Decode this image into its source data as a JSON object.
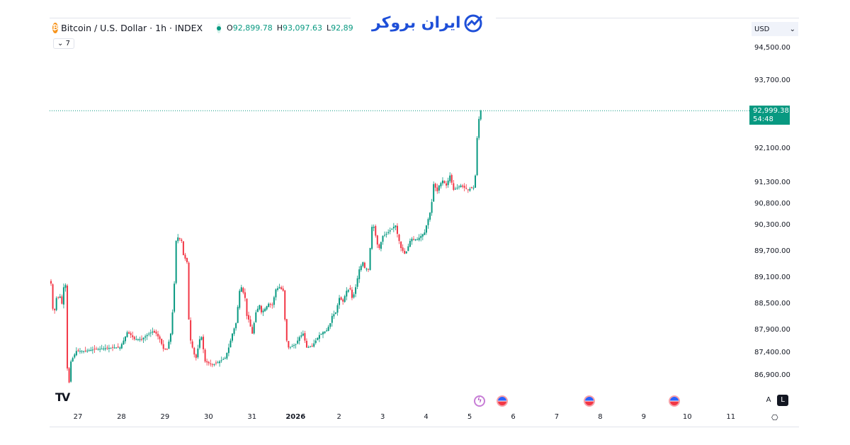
{
  "legend": {
    "symbol_icon": "bitcoin-icon",
    "title": "Bitcoin / U.S. Dollar · 1h · INDEX",
    "o_label": "O",
    "o_value": "92,899.78",
    "h_label": "H",
    "h_value": "93,097.63",
    "l_label": "L",
    "l_value": "92,89",
    "indicators_toggle": "7"
  },
  "logo_text": "ایران بروکر",
  "currency": "USD",
  "price_axis": [
    "94,500.00",
    "93,700.00",
    "92,100.00",
    "91,300.00",
    "90,800.00",
    "90,300.00",
    "89,700.00",
    "89,100.00",
    "88,500.00",
    "87,900.00",
    "87,400.00",
    "86,900.00"
  ],
  "last_price": {
    "value": "92,999.38",
    "countdown": "54:48"
  },
  "time_axis": [
    "27",
    "28",
    "29",
    "30",
    "31",
    "2026",
    "2",
    "3",
    "4",
    "5",
    "6",
    "7",
    "8",
    "9",
    "10",
    "11"
  ],
  "scale_buttons": {
    "auto": "A",
    "log": "L"
  },
  "colors": {
    "up": "#089981",
    "down": "#f23645",
    "brand": "#1e4fd8"
  },
  "chart_data": {
    "type": "candlestick",
    "interval": "1h",
    "y_scale": "log",
    "ylim": [
      86900,
      94500
    ],
    "grid": false,
    "close_anchors": [
      [
        "2025-12-26 09:00",
        88970
      ],
      [
        "2025-12-26 10:00",
        88399
      ],
      [
        "2025-12-26 11:00",
        88366
      ],
      [
        "2025-12-26 12:00",
        88644
      ],
      [
        "2025-12-26 14:00",
        88676
      ],
      [
        "2025-12-26 15:00",
        88513
      ],
      [
        "2025-12-26 16:00",
        88888
      ],
      [
        "2025-12-26 17:00",
        88937
      ],
      [
        "2025-12-26 18:00",
        87058
      ],
      [
        "2025-12-26 19:00",
        86746
      ],
      [
        "2025-12-26 20:00",
        87214
      ],
      [
        "2025-12-26 21:00",
        87292
      ],
      [
        "2025-12-26 23:00",
        87448
      ],
      [
        "2025-12-27 04:00",
        87448
      ],
      [
        "2025-12-27 08:00",
        87479
      ],
      [
        "2025-12-27 12:00",
        87495
      ],
      [
        "2025-12-27 19:00",
        87526
      ],
      [
        "2025-12-27 23:00",
        87526
      ],
      [
        "2025-12-28 01:00",
        87682
      ],
      [
        "2025-12-28 03:00",
        87869
      ],
      [
        "2025-12-28 05:00",
        87806
      ],
      [
        "2025-12-28 07:00",
        87713
      ],
      [
        "2025-12-28 11:00",
        87713
      ],
      [
        "2025-12-28 15:00",
        87838
      ],
      [
        "2025-12-28 17:00",
        87884
      ],
      [
        "2025-12-28 19:00",
        87838
      ],
      [
        "2025-12-28 21:00",
        87713
      ],
      [
        "2025-12-28 23:00",
        87495
      ],
      [
        "2025-12-29 01:00",
        87479
      ],
      [
        "2025-12-29 03:00",
        87838
      ],
      [
        "2025-12-29 04:00",
        88318
      ],
      [
        "2025-12-29 05:00",
        88970
      ],
      [
        "2025-12-29 06:00",
        89948
      ],
      [
        "2025-12-29 07:00",
        90029
      ],
      [
        "2025-12-29 09:00",
        89948
      ],
      [
        "2025-12-29 10:00",
        89622
      ],
      [
        "2025-12-29 12:00",
        89459
      ],
      [
        "2025-12-29 13:00",
        88155
      ],
      [
        "2025-12-29 14:00",
        87682
      ],
      [
        "2025-12-29 16:00",
        87370
      ],
      [
        "2025-12-29 17:00",
        87292
      ],
      [
        "2025-12-29 19:00",
        87713
      ],
      [
        "2025-12-29 20:00",
        87760
      ],
      [
        "2025-12-29 22:00",
        87214
      ],
      [
        "2025-12-30 02:00",
        87136
      ],
      [
        "2025-12-30 06:00",
        87214
      ],
      [
        "2025-12-30 09:00",
        87292
      ],
      [
        "2025-12-30 11:00",
        87526
      ],
      [
        "2025-12-30 13:00",
        87838
      ],
      [
        "2025-12-30 15:00",
        88073
      ],
      [
        "2025-12-30 17:00",
        88807
      ],
      [
        "2025-12-30 18:00",
        88888
      ],
      [
        "2025-12-30 20:00",
        88644
      ],
      [
        "2025-12-30 21:00",
        88236
      ],
      [
        "2025-12-30 22:00",
        88155
      ],
      [
        "2025-12-31 00:00",
        87838
      ],
      [
        "2025-12-31 02:00",
        88318
      ],
      [
        "2025-12-31 04:00",
        88481
      ],
      [
        "2025-12-31 05:00",
        88318
      ],
      [
        "2025-12-31 07:00",
        88399
      ],
      [
        "2025-12-31 09:00",
        88513
      ],
      [
        "2025-12-31 11:00",
        88481
      ],
      [
        "2025-12-31 13:00",
        88839
      ],
      [
        "2025-12-31 15:00",
        88888
      ],
      [
        "2025-12-31 17:00",
        88807
      ],
      [
        "2025-12-31 18:00",
        88155
      ],
      [
        "2025-12-31 19:00",
        87682
      ],
      [
        "2025-12-31 20:00",
        87526
      ],
      [
        "2025-12-31 22:00",
        87557
      ],
      [
        "2026-01-01 00:00",
        87604
      ],
      [
        "2026-01-01 02:00",
        87760
      ],
      [
        "2026-01-01 04:00",
        87838
      ],
      [
        "2026-01-01 06:00",
        87526
      ],
      [
        "2026-01-01 09:00",
        87557
      ],
      [
        "2026-01-01 11:00",
        87682
      ],
      [
        "2026-01-01 13:00",
        87806
      ],
      [
        "2026-01-01 15:00",
        87869
      ],
      [
        "2026-01-01 17:00",
        87910
      ],
      [
        "2026-01-01 19:00",
        88073
      ],
      [
        "2026-01-01 20:00",
        88236
      ],
      [
        "2026-01-01 22:00",
        88318
      ],
      [
        "2026-01-02 00:00",
        88644
      ],
      [
        "2026-01-02 02:00",
        88562
      ],
      [
        "2026-01-02 04:00",
        88807
      ],
      [
        "2026-01-02 06:00",
        88839
      ],
      [
        "2026-01-02 07:00",
        88644
      ],
      [
        "2026-01-02 08:00",
        88725
      ],
      [
        "2026-01-02 09:00",
        88888
      ],
      [
        "2026-01-02 11:00",
        89296
      ],
      [
        "2026-01-02 13:00",
        89459
      ],
      [
        "2026-01-02 14:00",
        89328
      ],
      [
        "2026-01-02 16:00",
        89296
      ],
      [
        "2026-01-02 18:00",
        90274
      ],
      [
        "2026-01-02 19:00",
        90274
      ],
      [
        "2026-01-02 21:00",
        89866
      ],
      [
        "2026-01-02 22:00",
        89785
      ],
      [
        "2026-01-03 00:00",
        90062
      ],
      [
        "2026-01-03 02:00",
        90111
      ],
      [
        "2026-01-03 04:00",
        90192
      ],
      [
        "2026-01-03 06:00",
        90274
      ],
      [
        "2026-01-03 07:00",
        90306
      ],
      [
        "2026-01-03 08:00",
        90111
      ],
      [
        "2026-01-03 10:00",
        89785
      ],
      [
        "2026-01-03 12:00",
        89654
      ],
      [
        "2026-01-03 13:00",
        89703
      ],
      [
        "2026-01-03 15:00",
        89948
      ],
      [
        "2026-01-03 16:00",
        89997
      ],
      [
        "2026-01-03 19:00",
        89980
      ],
      [
        "2026-01-03 21:00",
        90062
      ],
      [
        "2026-01-03 23:00",
        90143
      ],
      [
        "2026-01-04 00:00",
        90306
      ],
      [
        "2026-01-04 02:00",
        90600
      ],
      [
        "2026-01-04 03:00",
        90849
      ],
      [
        "2026-01-04 04:00",
        91267
      ],
      [
        "2026-01-04 06:00",
        91100
      ],
      [
        "2026-01-04 07:00",
        91233
      ],
      [
        "2026-01-04 09:00",
        91350
      ],
      [
        "2026-01-04 11:00",
        91233
      ],
      [
        "2026-01-04 13:00",
        91467
      ],
      [
        "2026-01-04 15:00",
        91133
      ],
      [
        "2026-01-04 17:00",
        91183
      ],
      [
        "2026-01-04 19:00",
        91233
      ],
      [
        "2026-01-04 21:00",
        91183
      ],
      [
        "2026-01-04 23:00",
        91133
      ],
      [
        "2026-01-05 01:00",
        91183
      ],
      [
        "2026-01-05 02:00",
        91183
      ],
      [
        "2026-01-05 03:00",
        91467
      ],
      [
        "2026-01-05 04:00",
        92352
      ],
      [
        "2026-01-05 05:00",
        92803
      ],
      [
        "2026-01-05 06:00",
        92999.38
      ]
    ]
  },
  "events": [
    {
      "icon": "lightning-icon",
      "date": "5"
    },
    {
      "icon": "us-flag-icon",
      "date": "5"
    },
    {
      "icon": "us-flag-icon",
      "date": "7"
    },
    {
      "icon": "us-flag-icon",
      "date": "9"
    }
  ]
}
